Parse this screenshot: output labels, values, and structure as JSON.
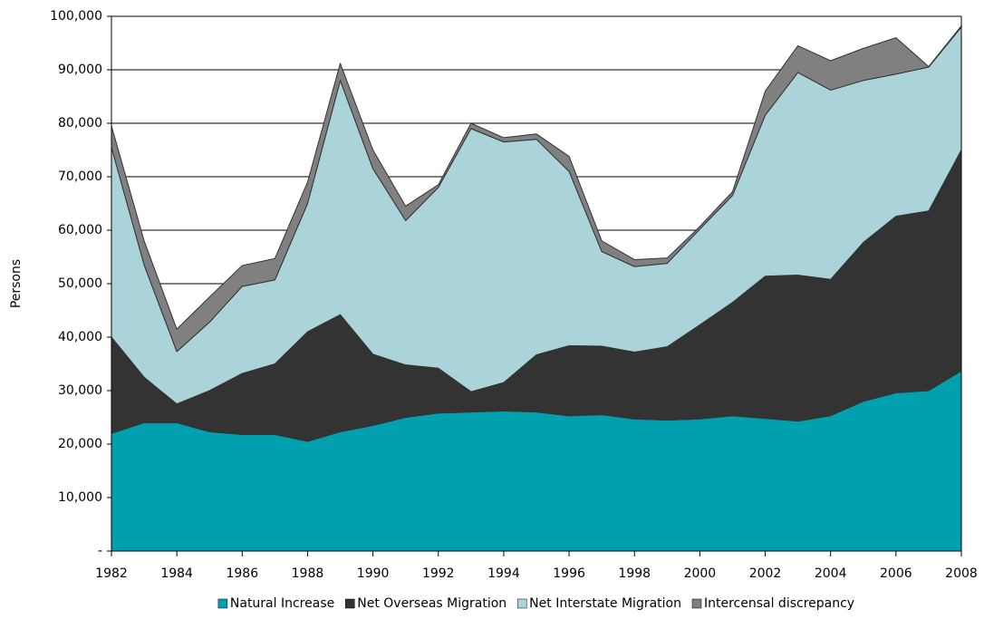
{
  "chart_data": {
    "type": "stacked-area",
    "y_label": "Persons",
    "x": [
      1982,
      1983,
      1984,
      1985,
      1986,
      1987,
      1988,
      1989,
      1990,
      1991,
      1992,
      1993,
      1994,
      1995,
      1996,
      1997,
      1998,
      1999,
      2000,
      2001,
      2002,
      2003,
      2004,
      2005,
      2006,
      2007,
      2008
    ],
    "xlim": [
      1982,
      2008
    ],
    "xticks": [
      1982,
      1984,
      1986,
      1988,
      1990,
      1992,
      1994,
      1996,
      1998,
      2000,
      2002,
      2004,
      2006,
      2008
    ],
    "ylim": [
      0,
      100000
    ],
    "yticks": [
      {
        "value": 0,
        "label": "-"
      },
      {
        "value": 10000,
        "label": "10,000"
      },
      {
        "value": 20000,
        "label": "20,000"
      },
      {
        "value": 30000,
        "label": "30,000"
      },
      {
        "value": 40000,
        "label": "40,000"
      },
      {
        "value": 50000,
        "label": "50,000"
      },
      {
        "value": 60000,
        "label": "60,000"
      },
      {
        "value": 70000,
        "label": "70,000"
      },
      {
        "value": 80000,
        "label": "80,000"
      },
      {
        "value": 90000,
        "label": "90,000"
      },
      {
        "value": 100000,
        "label": "100,000"
      }
    ],
    "grid": true,
    "legend": "bottom",
    "series": [
      {
        "name": "Natural Increase",
        "color": "#00a0ae",
        "values": [
          22000,
          24000,
          24000,
          22300,
          21800,
          21800,
          20500,
          22300,
          23500,
          25000,
          25800,
          26000,
          26200,
          26000,
          25300,
          25500,
          24700,
          24500,
          24700,
          25300,
          24800,
          24300,
          25300,
          28000,
          29600,
          30000,
          33700
        ]
      },
      {
        "name": "Net Overseas Migration",
        "color": "#333333",
        "values": [
          18000,
          8500,
          3500,
          7700,
          11400,
          13200,
          20500,
          21900,
          13300,
          9800,
          8400,
          3800,
          5300,
          10700,
          13100,
          12800,
          12500,
          13700,
          17600,
          21200,
          26600,
          27300,
          25500,
          29700,
          33000,
          33600,
          41300
        ]
      },
      {
        "name": "Net Interstate Migration",
        "color": "#aad4da",
        "values": [
          35500,
          21000,
          9800,
          12800,
          16300,
          15700,
          24000,
          43800,
          34700,
          27000,
          33800,
          49200,
          45000,
          40300,
          32600,
          17700,
          16000,
          15600,
          17900,
          20000,
          30100,
          37900,
          35400,
          30300,
          26600,
          26900,
          23000
        ]
      },
      {
        "name": "Intercensal discrepancy",
        "color": "#808080",
        "values": [
          4000,
          4500,
          4200,
          4700,
          3900,
          4000,
          4000,
          3200,
          3500,
          2700,
          500,
          1000,
          800,
          1000,
          2800,
          2000,
          1300,
          1000,
          500,
          700,
          4500,
          5000,
          5500,
          6000,
          6800,
          100,
          200
        ]
      }
    ]
  }
}
